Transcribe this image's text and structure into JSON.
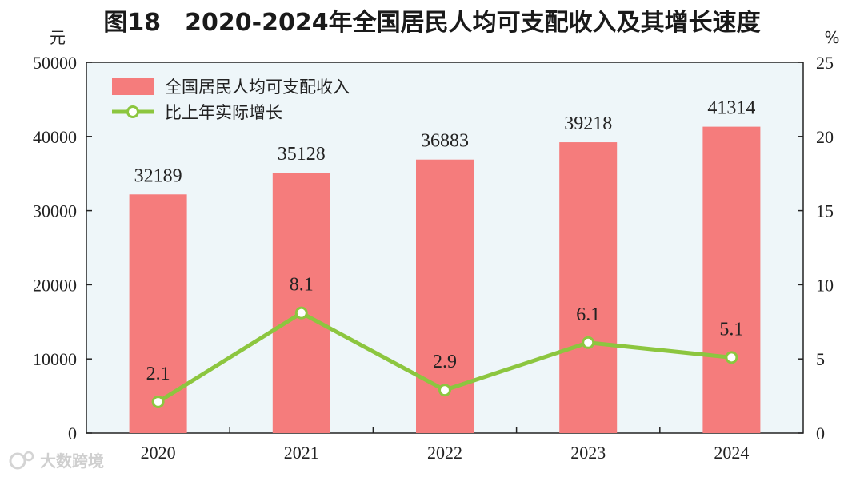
{
  "chart_data": {
    "type": "bar",
    "title": "图18　2020-2024年全国居民人均可支配收入及其增长速度",
    "categories": [
      "2020",
      "2021",
      "2022",
      "2023",
      "2024"
    ],
    "series": [
      {
        "name": "全国居民人均可支配收入",
        "kind": "bar",
        "axis": "left",
        "values": [
          32189,
          35128,
          36883,
          39218,
          41314
        ],
        "labels": [
          "32189",
          "35128",
          "36883",
          "39218",
          "41314"
        ],
        "color": "#f57c7c"
      },
      {
        "name": "比上年实际增长",
        "kind": "line",
        "axis": "right",
        "values": [
          2.1,
          8.1,
          2.9,
          6.1,
          5.1
        ],
        "labels": [
          "2.1",
          "8.1",
          "2.9",
          "6.1",
          "5.1"
        ],
        "color": "#8cc63f"
      }
    ],
    "left_axis": {
      "unit": "元",
      "ylim": [
        0,
        50000
      ],
      "ticks": [
        "0",
        "10000",
        "20000",
        "30000",
        "40000",
        "50000"
      ]
    },
    "right_axis": {
      "unit": "%",
      "ylim": [
        0,
        25
      ],
      "ticks": [
        "0",
        "5",
        "10",
        "15",
        "20",
        "25"
      ]
    },
    "legend_position": "top-left",
    "plot_background": "#eef6f9"
  },
  "watermark": "大数跨境"
}
